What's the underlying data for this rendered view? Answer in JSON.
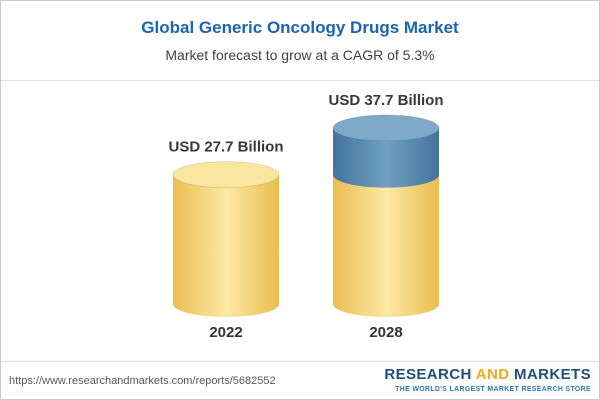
{
  "header": {
    "title": "Global Generic Oncology Drugs Market",
    "subtitle": "Market forecast to grow at a CAGR of 5.3%"
  },
  "chart_data": {
    "type": "bar",
    "variant": "cylinder",
    "title": "Global Generic Oncology Drugs Market",
    "subtitle": "Market forecast to grow at a CAGR of 5.3%",
    "unit": "USD Billion",
    "cagr": "5.3%",
    "categories": [
      "2022",
      "2028"
    ],
    "values": [
      27.7,
      37.7
    ],
    "ylim": [
      0,
      40
    ],
    "grid": false,
    "legend": "none",
    "bars": [
      {
        "category": "2022",
        "value": 27.7,
        "value_label": "USD 27.7 Billion",
        "segments": [
          {
            "value": 27.7,
            "color": "yellow"
          }
        ]
      },
      {
        "category": "2028",
        "value": 37.7,
        "value_label": "USD 37.7 Billion",
        "segments": [
          {
            "value": 27.7,
            "color": "yellow"
          },
          {
            "value": 10.0,
            "color": "blue"
          }
        ]
      }
    ],
    "colors": {
      "yellow": {
        "edge": "#eabd50",
        "mid": "#fbe9a4",
        "top": "#f9e7a0"
      },
      "blue": {
        "edge": "#44749d",
        "mid": "#6fa0c4",
        "top": "#7fa9c8"
      },
      "label_text": "#383838",
      "axis_text": "#333333",
      "title_text": "#1a64b0"
    }
  },
  "footer": {
    "url": "https://www.researchandmarkets.com/reports/5682552",
    "logo": {
      "word1": "RESEARCH",
      "word2": "AND",
      "word3": "MARKETS",
      "tagline": "THE WORLD'S LARGEST MARKET RESEARCH STORE"
    }
  }
}
